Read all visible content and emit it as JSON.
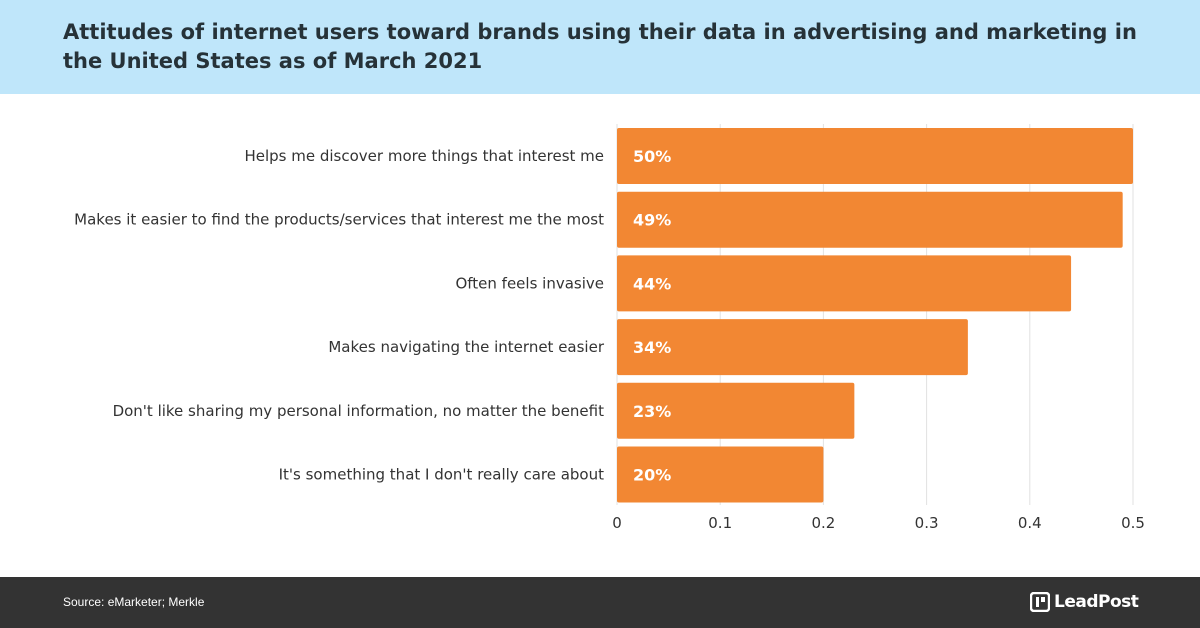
{
  "title": "Attitudes of internet users toward brands using their data in advertising and marketing in the United States as of March 2021",
  "source": "Source: eMarketer; Merkle",
  "brand": {
    "name": "LeadPost",
    "icon": "leadpost-logo-icon"
  },
  "colors": {
    "bar": "#f28733",
    "title_band": "#bfe6fa",
    "footer": "#333333",
    "grid": "#e2e2e2"
  },
  "chart_data": {
    "type": "bar",
    "orientation": "horizontal",
    "categories": [
      "Helps me discover more things that interest me",
      "Makes it easier to find the products/services that interest me the most",
      "Often feels invasive",
      "Makes navigating the internet easier",
      "Don't like sharing my personal information, no matter the benefit",
      "It's something that I don't really care about"
    ],
    "values": [
      0.5,
      0.49,
      0.44,
      0.34,
      0.23,
      0.2
    ],
    "data_labels": [
      "50%",
      "49%",
      "44%",
      "34%",
      "23%",
      "20%"
    ],
    "x_ticks": [
      0,
      0.1,
      0.2,
      0.3,
      0.4,
      0.5
    ],
    "x_tick_labels": [
      "0",
      "0.1",
      "0.2",
      "0.3",
      "0.4",
      "0.5"
    ],
    "xlim": [
      0,
      0.5
    ],
    "grid": "vertical",
    "legend": "none"
  }
}
